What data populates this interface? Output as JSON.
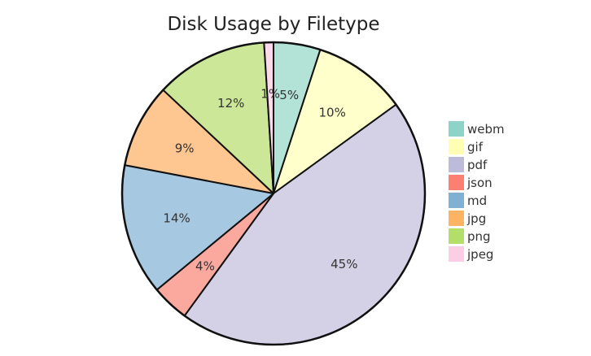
{
  "chart_data": {
    "type": "pie",
    "title": "Disk Usage by Filetype",
    "legend_position": "right",
    "start": "top",
    "direction": "clockwise",
    "slices": [
      {
        "label": "webm",
        "value": 5,
        "value_label": "5%",
        "color": "#b3e2d7"
      },
      {
        "label": "gif",
        "value": 10,
        "value_label": "10%",
        "color": "#ffffcc"
      },
      {
        "label": "pdf",
        "value": 45,
        "value_label": "45%",
        "color": "#d4d1e7"
      },
      {
        "label": "json",
        "value": 4,
        "value_label": "4%",
        "color": "#fba89f"
      },
      {
        "label": "md",
        "value": 14,
        "value_label": "14%",
        "color": "#a6c8e0"
      },
      {
        "label": "jpg",
        "value": 9,
        "value_label": "9%",
        "color": "#fec690"
      },
      {
        "label": "png",
        "value": 12,
        "value_label": "12%",
        "color": "#cbe797"
      },
      {
        "label": "jpeg",
        "value": 1,
        "value_label": "1%",
        "color": "#fdd9ec"
      }
    ],
    "legend_colors": [
      "#8dd3c7",
      "#ffffb3",
      "#bebada",
      "#fb8072",
      "#80b1d3",
      "#fdb462",
      "#b3de69",
      "#fccde5"
    ]
  }
}
